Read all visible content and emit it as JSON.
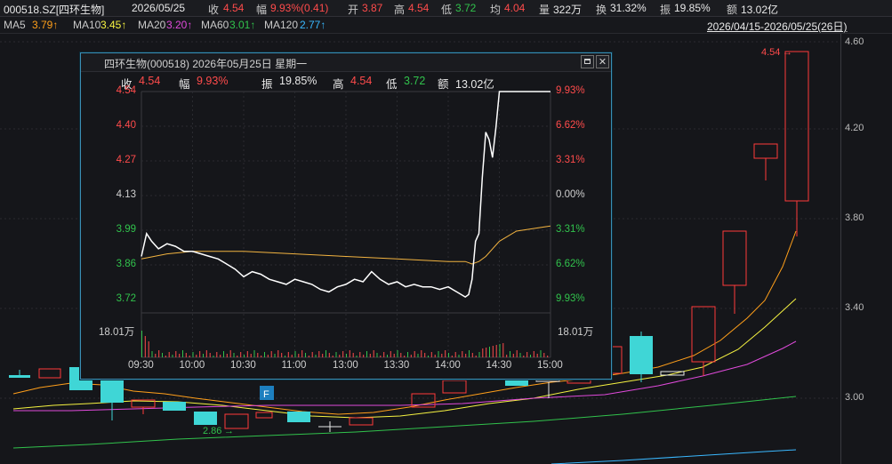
{
  "header": {
    "symbol": "000518.SZ[四环生物]",
    "date": "2026/05/25",
    "close_label": "收",
    "close_value": "4.54",
    "change_label": "幅",
    "change_value": "9.93%(0.41)",
    "open_label": "开",
    "open_value": "3.87",
    "high_label": "高",
    "high_value": "4.54",
    "low_label": "低",
    "low_value": "3.72",
    "avg_label": "均",
    "avg_value": "4.04",
    "volume_label": "量",
    "volume_value": "322万",
    "turnover_label": "换",
    "turnover_value": "31.32%",
    "amplitude_label": "振",
    "amplitude_value": "19.85%",
    "amount_label": "额",
    "amount_value": "13.02亿"
  },
  "ma_bar": {
    "ma5_label": "MA5",
    "ma5_value": "3.79↑",
    "ma10_label": "MA10",
    "ma10_value": "3.45↑",
    "ma20_label": "MA20",
    "ma20_value": "3.20↑",
    "ma60_label": "MA60",
    "ma60_value": "3.01↑",
    "ma120_label": "MA120",
    "ma120_value": "2.77↑",
    "range": "2026/04/15-2026/05/25(26日)"
  },
  "kline": {
    "y_ticks": [
      "4.60",
      "4.20",
      "3.80",
      "3.40",
      "3.00"
    ],
    "high_marker": "4.54",
    "low_marker": "2.86",
    "f_badge": "F",
    "colors": {
      "up": "#ff3b3b",
      "down": "#3fd6d6"
    }
  },
  "popup": {
    "title": "四环生物(000518) 2026年05月25日 星期一",
    "restore_icon": "window-restore-icon",
    "close_icon": "close-icon",
    "close_glyph": "✕",
    "stats": {
      "close_label": "收",
      "close_value": "4.54",
      "change_label": "幅",
      "change_value": "9.93%",
      "amp_label": "振",
      "amp_value": "19.85%",
      "high_label": "高",
      "high_value": "4.54",
      "low_label": "低",
      "low_value": "3.72",
      "amount_label": "额",
      "amount_value": "13.02亿"
    },
    "vol_label": "18.01万",
    "vol_label_right": "18.01万"
  },
  "chart_data": {
    "type": "line",
    "x_ticks": [
      "09:30",
      "10:00",
      "10:30",
      "11:00",
      "13:00",
      "13:30",
      "14:00",
      "14:30",
      "15:00"
    ],
    "y_left_ticks": [
      "4.54",
      "4.40",
      "4.27",
      "4.13",
      "3.99",
      "3.86",
      "3.72"
    ],
    "y_right_ticks": [
      "9.93%",
      "6.62%",
      "3.31%",
      "0.00%",
      "3.31%",
      "6.62%",
      "9.93%"
    ],
    "ylim": [
      3.72,
      4.54
    ],
    "series": [
      {
        "x": [
          "09:30",
          "09:33",
          "09:36",
          "09:40",
          "09:45",
          "09:50",
          "09:55",
          "10:00",
          "10:05",
          "10:10",
          "10:15",
          "10:20",
          "10:25",
          "10:30",
          "10:35",
          "10:40",
          "10:45",
          "10:50",
          "10:55",
          "11:00",
          "11:05",
          "11:10",
          "11:15",
          "11:20",
          "11:25",
          "11:30",
          "13:05",
          "13:10",
          "13:15",
          "13:20",
          "13:25",
          "13:30",
          "13:35",
          "13:40",
          "13:45",
          "13:50",
          "13:55",
          "14:00",
          "14:05",
          "14:10",
          "14:12",
          "14:14",
          "14:16",
          "14:18",
          "14:20",
          "14:22",
          "14:24",
          "14:26",
          "14:28",
          "14:30",
          "14:35",
          "14:40",
          "14:45",
          "14:50",
          "14:55",
          "15:00"
        ],
        "values": [
          3.89,
          3.98,
          3.95,
          3.92,
          3.94,
          3.93,
          3.91,
          3.91,
          3.9,
          3.89,
          3.88,
          3.86,
          3.84,
          3.81,
          3.83,
          3.82,
          3.8,
          3.79,
          3.78,
          3.8,
          3.79,
          3.78,
          3.76,
          3.75,
          3.77,
          3.78,
          3.8,
          3.79,
          3.83,
          3.8,
          3.78,
          3.79,
          3.77,
          3.78,
          3.77,
          3.77,
          3.76,
          3.77,
          3.75,
          3.73,
          3.74,
          3.8,
          3.95,
          3.98,
          4.2,
          4.38,
          4.35,
          4.28,
          4.4,
          4.54,
          4.54,
          4.54,
          4.54,
          4.54,
          4.54,
          4.54
        ]
      },
      {
        "x": [
          "09:30",
          "09:45",
          "10:00",
          "10:30",
          "11:00",
          "11:30",
          "13:30",
          "14:00",
          "14:10",
          "14:14",
          "14:18",
          "14:22",
          "14:30",
          "14:40",
          "14:50",
          "15:00"
        ],
        "values": [
          3.88,
          3.9,
          3.91,
          3.91,
          3.9,
          3.89,
          3.88,
          3.87,
          3.87,
          3.86,
          3.87,
          3.89,
          3.95,
          3.99,
          4.0,
          4.01
        ]
      }
    ]
  }
}
